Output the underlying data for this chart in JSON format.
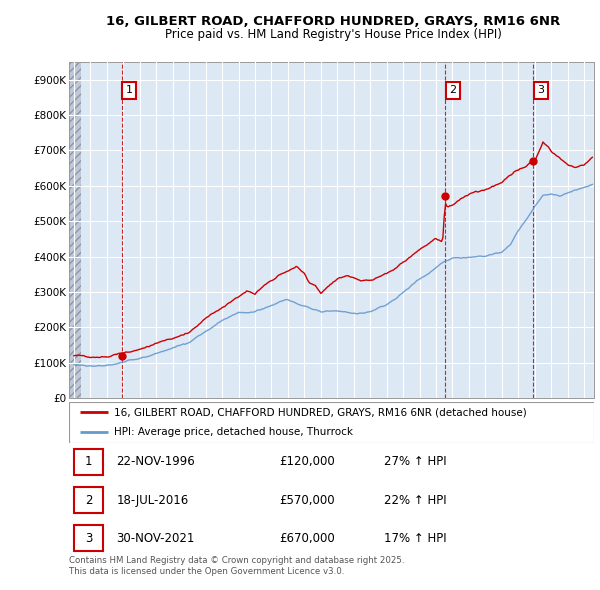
{
  "title_line1": "16, GILBERT ROAD, CHAFFORD HUNDRED, GRAYS, RM16 6NR",
  "title_line2": "Price paid vs. HM Land Registry's House Price Index (HPI)",
  "ylim": [
    0,
    950000
  ],
  "yticks": [
    0,
    100000,
    200000,
    300000,
    400000,
    500000,
    600000,
    700000,
    800000,
    900000
  ],
  "ytick_labels": [
    "£0",
    "£100K",
    "£200K",
    "£300K",
    "£400K",
    "£500K",
    "£600K",
    "£700K",
    "£800K",
    "£900K"
  ],
  "xlim_start": 1993.7,
  "xlim_end": 2025.6,
  "xticks": [
    1994,
    1995,
    1996,
    1997,
    1998,
    1999,
    2000,
    2001,
    2002,
    2003,
    2004,
    2005,
    2006,
    2007,
    2008,
    2009,
    2010,
    2011,
    2012,
    2013,
    2014,
    2015,
    2016,
    2017,
    2018,
    2019,
    2020,
    2021,
    2022,
    2023,
    2024,
    2025
  ],
  "sales": [
    {
      "date_num": 1996.9,
      "price": 120000,
      "label": "1"
    },
    {
      "date_num": 2016.55,
      "price": 570000,
      "label": "2"
    },
    {
      "date_num": 2021.92,
      "price": 670000,
      "label": "3"
    }
  ],
  "legend_line1": "16, GILBERT ROAD, CHAFFORD HUNDRED, GRAYS, RM16 6NR (detached house)",
  "legend_line2": "HPI: Average price, detached house, Thurrock",
  "table_rows": [
    {
      "num": "1",
      "date": "22-NOV-1996",
      "price": "£120,000",
      "hpi": "27% ↑ HPI"
    },
    {
      "num": "2",
      "date": "18-JUL-2016",
      "price": "£570,000",
      "hpi": "22% ↑ HPI"
    },
    {
      "num": "3",
      "date": "30-NOV-2021",
      "price": "£670,000",
      "hpi": "17% ↑ HPI"
    }
  ],
  "footnote": "Contains HM Land Registry data © Crown copyright and database right 2025.\nThis data is licensed under the Open Government Licence v3.0.",
  "red_color": "#cc0000",
  "blue_color": "#6699cc",
  "chart_bg": "#dde8f5",
  "grid_color": "#ffffff",
  "vline_color": "#cc0000",
  "hatch_color": "#c0c8d8"
}
